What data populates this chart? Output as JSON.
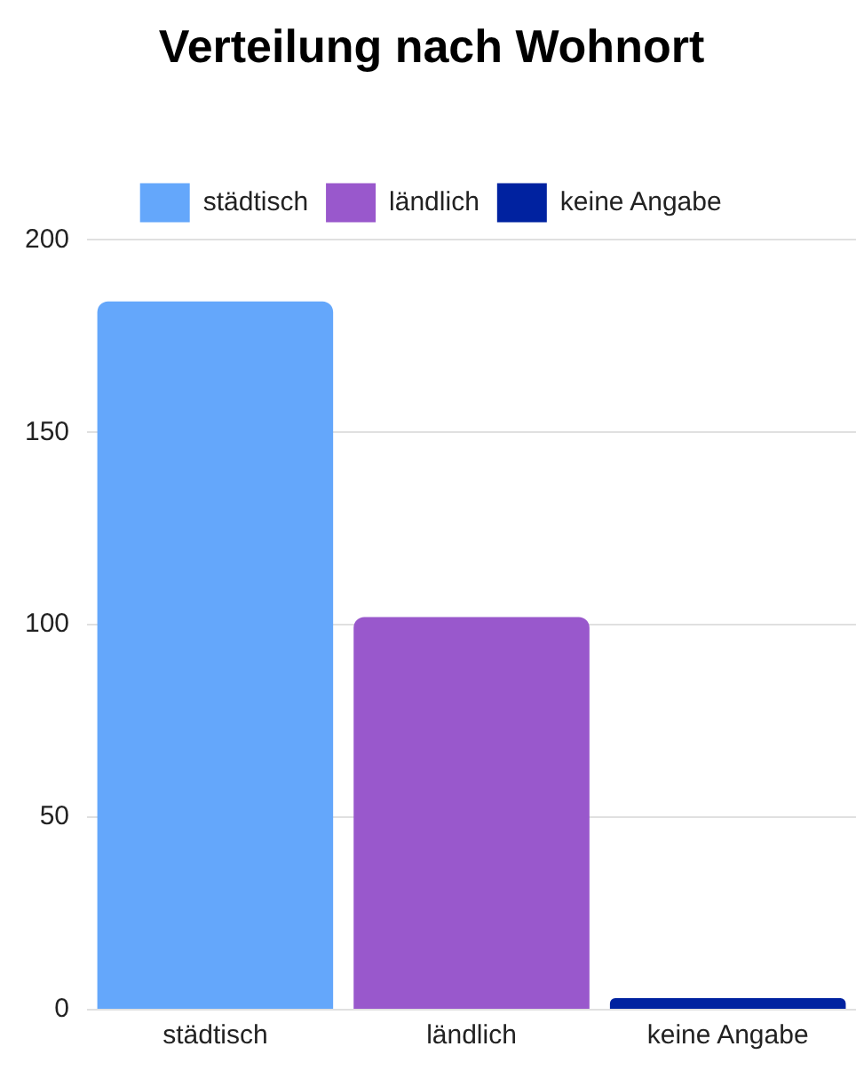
{
  "chart_data": {
    "type": "bar",
    "title": "Verteilung nach Wohnort",
    "categories": [
      "städtisch",
      "ländlich",
      "keine Angabe"
    ],
    "series": [
      {
        "name": "städtisch",
        "color": "#64a7fb",
        "values": [
          184,
          null,
          null
        ]
      },
      {
        "name": "ländlich",
        "color": "#9958cc",
        "values": [
          null,
          102,
          null
        ]
      },
      {
        "name": "keine Angabe",
        "color": "#0022a0",
        "values": [
          null,
          null,
          3
        ]
      }
    ],
    "ylim": [
      0,
      200
    ],
    "yticks": [
      0,
      50,
      100,
      150,
      200
    ],
    "grid": "y",
    "legend": "top"
  }
}
